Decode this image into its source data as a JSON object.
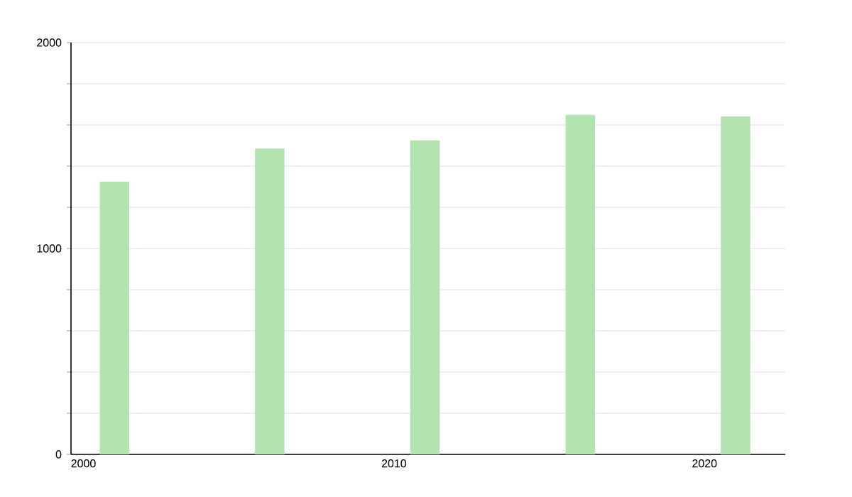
{
  "chart_data": {
    "type": "bar",
    "x": [
      2001,
      2006,
      2011,
      2016,
      2021
    ],
    "values": [
      1325,
      1485,
      1525,
      1649,
      1641
    ],
    "color": "#b2e3b0",
    "xlim": [
      1999.6,
      2022.6
    ],
    "xticks": [
      2000,
      2010,
      2020
    ],
    "ylim": [
      0,
      2000
    ],
    "yticks": [
      0,
      {
        "value": 200,
        "label": null
      },
      {
        "value": 400,
        "label": null
      },
      {
        "value": 600,
        "label": null
      },
      {
        "value": 800,
        "label": null
      },
      1000,
      {
        "value": 1200,
        "label": null
      },
      {
        "value": 1400,
        "label": null
      },
      {
        "value": 1600,
        "label": null
      },
      {
        "value": 1800,
        "label": null
      },
      2000
    ],
    "grid": "y"
  }
}
